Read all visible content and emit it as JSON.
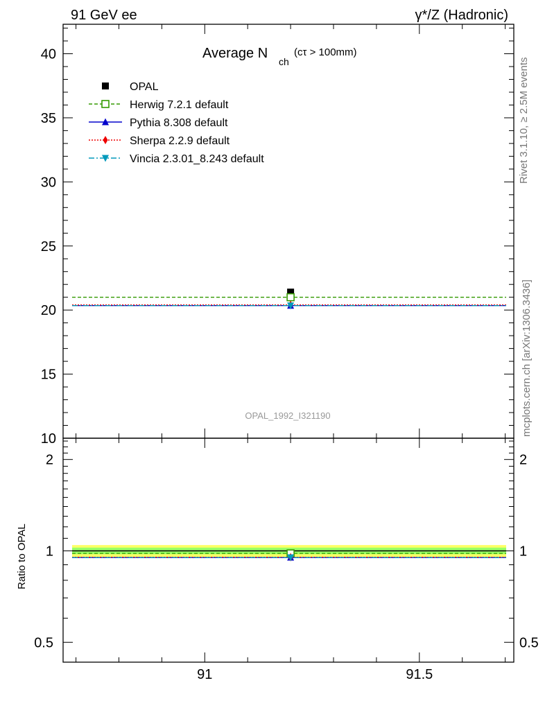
{
  "header": {
    "left": "91 GeV ee",
    "right": "γ*/Z (Hadronic)"
  },
  "title": {
    "main": "Average N",
    "sub": "ch",
    "cut": "(cτ > 100mm)"
  },
  "side_labels": {
    "rivet": "Rivet 3.1.10, ≥ 2.5M events",
    "mcplots": "mcplots.cern.ch [arXiv:1306.3436]"
  },
  "watermark": "OPAL_1992_I321190",
  "ratio_ylabel": "Ratio to OPAL",
  "colors": {
    "OPAL": "#000000",
    "Herwig": "#339900",
    "Pythia": "#0000cc",
    "Sherpa": "#ee0000",
    "Vincia": "#0099bb",
    "band_outer": "#ffff66",
    "band_inner": "#99ff66"
  },
  "chart_data": [
    {
      "type": "scatter",
      "panel": "main",
      "x_range": [
        90.67,
        91.72
      ],
      "ylim": [
        10,
        42.3
      ],
      "y_ticks": [
        10,
        15,
        20,
        25,
        30,
        35,
        40
      ],
      "y_tick_labels": [
        "10",
        "15",
        "20",
        "25",
        "30",
        "35",
        "40"
      ],
      "x_ticks": [
        91,
        91.5
      ],
      "legend_position": "top-left",
      "series": [
        {
          "name": "OPAL",
          "marker": "square-filled",
          "x": [
            91.2
          ],
          "y": [
            21.4
          ],
          "line": "none"
        },
        {
          "name": "Herwig 7.2.1 default",
          "marker": "square-open",
          "x": [
            91.2
          ],
          "y": [
            21.0
          ],
          "line": "dashed"
        },
        {
          "name": "Pythia 8.308 default",
          "marker": "triangle-up",
          "x": [
            91.2
          ],
          "y": [
            20.35
          ],
          "line": "solid"
        },
        {
          "name": "Sherpa 2.2.9 default",
          "marker": "diamond",
          "x": [
            91.2
          ],
          "y": [
            20.4
          ],
          "line": "dotted"
        },
        {
          "name": "Vincia 2.3.01_8.243 default",
          "marker": "triangle-down",
          "x": [
            91.2
          ],
          "y": [
            20.35
          ],
          "line": "dashdot"
        }
      ]
    },
    {
      "type": "scatter",
      "panel": "ratio",
      "x_range": [
        90.67,
        91.72
      ],
      "ylim": [
        0.43,
        2.35
      ],
      "log_y": true,
      "y_ticks": [
        0.5,
        1,
        2
      ],
      "y_tick_labels": [
        "0.5",
        "1",
        "2"
      ],
      "x_ticks": [
        91,
        91.5
      ],
      "x_tick_labels": [
        "91",
        "91.5"
      ],
      "band": {
        "outer": [
          0.955,
          1.045
        ],
        "inner": [
          0.975,
          1.025
        ]
      },
      "series": [
        {
          "name": "Herwig 7.2.1 default",
          "x": [
            91.2
          ],
          "y": [
            0.981
          ]
        },
        {
          "name": "Pythia 8.308 default",
          "x": [
            91.2
          ],
          "y": [
            0.951
          ]
        },
        {
          "name": "Sherpa 2.2.9 default",
          "x": [
            91.2
          ],
          "y": [
            0.953
          ]
        },
        {
          "name": "Vincia 2.3.01_8.243 default",
          "x": [
            91.2
          ],
          "y": [
            0.951
          ]
        }
      ]
    }
  ]
}
